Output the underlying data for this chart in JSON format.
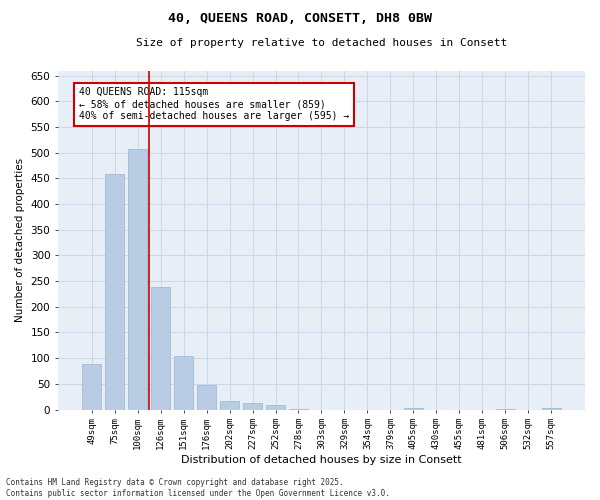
{
  "title": "40, QUEENS ROAD, CONSETT, DH8 0BW",
  "subtitle": "Size of property relative to detached houses in Consett",
  "xlabel": "Distribution of detached houses by size in Consett",
  "ylabel": "Number of detached properties",
  "categories": [
    "49sqm",
    "75sqm",
    "100sqm",
    "126sqm",
    "151sqm",
    "176sqm",
    "202sqm",
    "227sqm",
    "252sqm",
    "278sqm",
    "303sqm",
    "329sqm",
    "354sqm",
    "379sqm",
    "405sqm",
    "430sqm",
    "455sqm",
    "481sqm",
    "506sqm",
    "532sqm",
    "557sqm"
  ],
  "values": [
    88,
    458,
    507,
    238,
    104,
    48,
    17,
    13,
    8,
    2,
    0,
    0,
    0,
    0,
    3,
    0,
    0,
    0,
    2,
    0,
    3
  ],
  "bar_color": "#b8cce4",
  "bar_edge_color": "#9ab4d0",
  "grid_color": "#c8d8e8",
  "bg_color": "#e8eef6",
  "vline_x": 2.5,
  "vline_color": "#cc0000",
  "annotation_text": "40 QUEENS ROAD: 115sqm\n← 58% of detached houses are smaller (859)\n40% of semi-detached houses are larger (595) →",
  "annotation_box_color": "#cc0000",
  "footer_line1": "Contains HM Land Registry data © Crown copyright and database right 2025.",
  "footer_line2": "Contains public sector information licensed under the Open Government Licence v3.0.",
  "ylim": [
    0,
    660
  ],
  "yticks": [
    0,
    50,
    100,
    150,
    200,
    250,
    300,
    350,
    400,
    450,
    500,
    550,
    600,
    650
  ]
}
